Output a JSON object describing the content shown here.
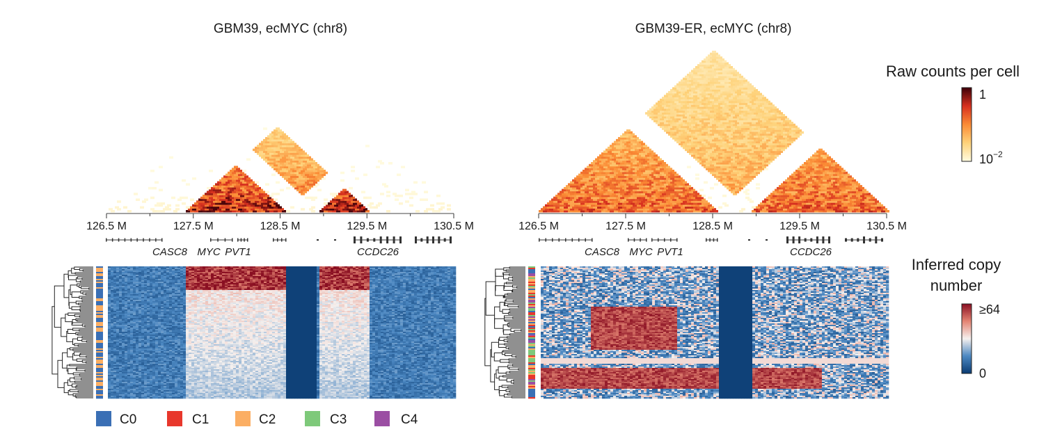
{
  "chart_data": [
    {
      "type": "heatmap",
      "subtype": "hic-triangle-with-copy-number",
      "title": "GBM39, ecMYC (chr8)",
      "x_ticks": [
        "126.5 M",
        "127.5 M",
        "128.5 M",
        "129.5 M",
        "130.5 M"
      ],
      "x_range_mb": [
        126.5,
        130.5
      ],
      "genes": [
        "CASC8",
        "MYC",
        "PVT1",
        "CCDC26"
      ],
      "ecdna_segments_mb": [
        [
          127.4,
          128.5
        ],
        [
          128.9,
          129.5
        ]
      ],
      "cluster_composition": [
        "C0",
        "C2"
      ]
    },
    {
      "type": "heatmap",
      "subtype": "hic-triangle-with-copy-number",
      "title": "GBM39-ER, ecMYC (chr8)",
      "x_ticks": [
        "126.5 M",
        "127.5 M",
        "128.5 M",
        "129.5 M",
        "130.5 M"
      ],
      "x_range_mb": [
        126.5,
        130.5
      ],
      "genes": [
        "CASC8",
        "MYC",
        "PVT1",
        "CCDC26"
      ],
      "ecdna_segments_mb": [
        [
          126.5,
          128.5
        ],
        [
          128.9,
          130.5
        ]
      ],
      "cluster_composition": [
        "C0",
        "C1",
        "C2",
        "C3",
        "C4"
      ]
    }
  ],
  "colorbar_contacts": {
    "title": "Raw counts per cell",
    "max_label": "1",
    "min_label": "10",
    "min_exp": "−2"
  },
  "colorbar_cn": {
    "title_line1": "Inferred copy",
    "title_line2": "number",
    "max_label": "≥64",
    "min_label": "0"
  },
  "legend": [
    {
      "label": "C0",
      "color": "#3a6fb5"
    },
    {
      "label": "C1",
      "color": "#e8372c"
    },
    {
      "label": "C2",
      "color": "#fbae63"
    },
    {
      "label": "C3",
      "color": "#7ec97a"
    },
    {
      "label": "C4",
      "color": "#9b4ea3"
    }
  ]
}
